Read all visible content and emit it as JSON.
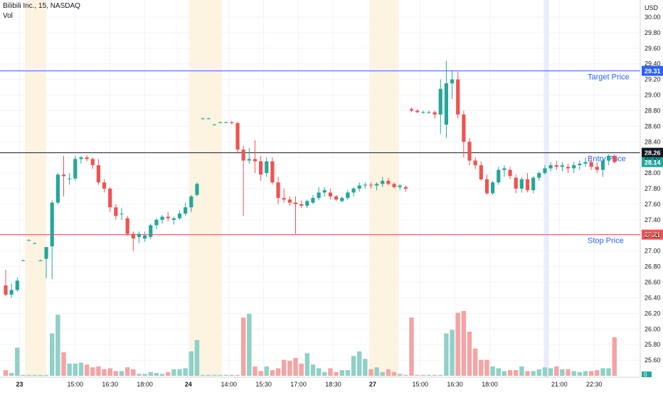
{
  "header": {
    "symbol": "Bilibili Inc., 15, NASDAQ",
    "volume_label": "Vol"
  },
  "colors": {
    "up": "#26a69a",
    "down": "#ef5350",
    "vol_up": "#8fd0c7",
    "vol_down": "#f5a3a3",
    "session_shade": "#fdf3e1",
    "grid": "#f0f3fa",
    "target": "#2962ff",
    "entry": "#131722",
    "stop": "#ef5350"
  },
  "chart_data": {
    "type": "candlestick",
    "currency": "USD",
    "y_axis": {
      "min": 25.4,
      "max": 30.1,
      "ticks": [
        "30.00",
        "29.80",
        "29.60",
        "29.40",
        "29.20",
        "29.00",
        "28.80",
        "28.60",
        "28.40",
        "28.20",
        "28.00",
        "27.80",
        "27.60",
        "27.40",
        "27.20",
        "27.00",
        "26.80",
        "26.60",
        "26.40",
        "26.20",
        "26.00",
        "25.80",
        "25.60"
      ]
    },
    "x_axis": {
      "ticks": [
        {
          "label": "23",
          "bold": true,
          "bar": 2.4
        },
        {
          "label": "15:00",
          "bold": false,
          "bar": 12
        },
        {
          "label": "16:30",
          "bold": false,
          "bar": 18
        },
        {
          "label": "18:00",
          "bold": false,
          "bar": 24
        },
        {
          "label": "24",
          "bold": true,
          "bar": 31.5
        },
        {
          "label": "14:00",
          "bold": false,
          "bar": 38.5
        },
        {
          "label": "15:30",
          "bold": false,
          "bar": 44.5
        },
        {
          "label": "17:00",
          "bold": false,
          "bar": 50.5
        },
        {
          "label": "18:30",
          "bold": false,
          "bar": 56.5
        },
        {
          "label": "27",
          "bold": true,
          "bar": 63.3
        },
        {
          "label": "15:00",
          "bold": false,
          "bar": 71.5
        },
        {
          "label": "16:30",
          "bold": false,
          "bar": 77.5
        },
        {
          "label": "18:00",
          "bold": false,
          "bar": 83.5
        },
        {
          "label": "21:00",
          "bold": false,
          "bar": 95.5
        },
        {
          "label": "22:30",
          "bold": false,
          "bar": 101.5
        }
      ]
    },
    "sessions": [
      [
        3.3,
        7.0
      ],
      [
        31.7,
        37.3
      ],
      [
        62.7,
        67.8
      ]
    ],
    "highlight_column": 93.2,
    "levels": [
      {
        "name": "Target Price",
        "value": 29.31,
        "label_value": "29.31",
        "role": "target"
      },
      {
        "name": "Entry Price",
        "value": 28.26,
        "label_value": "28.26",
        "role": "entry"
      },
      {
        "name": "Stop Price",
        "value": 27.21,
        "label_value": "27.21",
        "role": "stop"
      }
    ],
    "last_price": {
      "value": 28.14,
      "label": "28.14"
    },
    "volume_axis_label": "0",
    "candles": [
      [
        26.56,
        26.76,
        26.42,
        26.44,
        0.06
      ],
      [
        26.44,
        26.58,
        26.4,
        26.5,
        0.03
      ],
      [
        26.5,
        26.66,
        26.48,
        26.62,
        0.3
      ],
      [
        26.88,
        26.89,
        26.87,
        26.88,
        0.01
      ],
      [
        27.14,
        27.15,
        27.13,
        27.14,
        0.01
      ],
      [
        27.1,
        27.11,
        27.09,
        27.1,
        0.01
      ],
      [
        26.88,
        26.89,
        26.87,
        26.88,
        0.01
      ],
      [
        26.9,
        27.05,
        26.65,
        27.05,
        0.01
      ],
      [
        27.06,
        27.65,
        26.64,
        27.62,
        0.45
      ],
      [
        27.62,
        28.0,
        27.6,
        27.98,
        0.65
      ],
      [
        27.98,
        28.22,
        27.7,
        27.96,
        0.25
      ],
      [
        27.92,
        28.0,
        27.85,
        27.93,
        0.13
      ],
      [
        27.93,
        28.22,
        27.9,
        28.18,
        0.13
      ],
      [
        28.18,
        28.22,
        28.12,
        28.2,
        0.14
      ],
      [
        28.2,
        28.23,
        28.15,
        28.18,
        0.12
      ],
      [
        28.18,
        28.2,
        28.05,
        28.1,
        0.09
      ],
      [
        28.1,
        28.18,
        27.85,
        27.88,
        0.1
      ],
      [
        27.88,
        27.92,
        27.75,
        27.8,
        0.07
      ],
      [
        27.8,
        27.82,
        27.5,
        27.56,
        0.08
      ],
      [
        27.56,
        27.6,
        27.4,
        27.45,
        0.05
      ],
      [
        27.48,
        27.55,
        27.4,
        27.48,
        0.05
      ],
      [
        27.42,
        27.45,
        27.2,
        27.22,
        0.09
      ],
      [
        27.22,
        27.25,
        27.0,
        27.16,
        0.07
      ],
      [
        27.18,
        27.25,
        27.1,
        27.22,
        0.02
      ],
      [
        27.16,
        27.25,
        27.12,
        27.2,
        0.02
      ],
      [
        27.18,
        27.35,
        27.15,
        27.33,
        0.04
      ],
      [
        27.33,
        27.42,
        27.28,
        27.4,
        0.03
      ],
      [
        27.4,
        27.46,
        27.35,
        27.44,
        0.02
      ],
      [
        27.44,
        27.5,
        27.38,
        27.42,
        0.04
      ],
      [
        27.4,
        27.44,
        27.34,
        27.42,
        0.07
      ],
      [
        27.42,
        27.52,
        27.4,
        27.48,
        0.07
      ],
      [
        27.48,
        27.62,
        27.45,
        27.56,
        0.08
      ],
      [
        27.56,
        27.72,
        27.5,
        27.7,
        0.26
      ],
      [
        27.72,
        27.88,
        27.7,
        27.86,
        0.38
      ],
      [
        28.7,
        28.71,
        28.69,
        28.7,
        0.01
      ],
      [
        28.7,
        28.71,
        28.69,
        28.7,
        0.01
      ],
      [
        28.62,
        28.63,
        28.61,
        28.62,
        0.01
      ],
      [
        28.65,
        28.66,
        28.64,
        28.65,
        0.01
      ],
      [
        28.65,
        28.66,
        28.64,
        28.65,
        0.01
      ],
      [
        28.65,
        28.67,
        28.62,
        28.64,
        0.01
      ],
      [
        28.64,
        28.66,
        28.25,
        28.3,
        0.01
      ],
      [
        28.3,
        28.35,
        27.45,
        28.16,
        0.62
      ],
      [
        28.16,
        28.32,
        28.12,
        28.18,
        0.66
      ],
      [
        28.18,
        28.42,
        28.0,
        28.15,
        0.1
      ],
      [
        28.15,
        28.22,
        27.9,
        27.98,
        0.05
      ],
      [
        28.0,
        28.2,
        27.95,
        28.15,
        0.1
      ],
      [
        28.15,
        28.2,
        27.85,
        27.88,
        0.06
      ],
      [
        27.88,
        27.95,
        27.6,
        27.68,
        0.08
      ],
      [
        27.68,
        27.8,
        27.62,
        27.66,
        0.17
      ],
      [
        27.66,
        27.7,
        27.58,
        27.62,
        0.16
      ],
      [
        27.62,
        27.7,
        27.22,
        27.6,
        0.19
      ],
      [
        27.6,
        27.65,
        27.55,
        27.58,
        0.13
      ],
      [
        27.58,
        27.66,
        27.55,
        27.64,
        0.24
      ],
      [
        27.62,
        27.72,
        27.6,
        27.68,
        0.12
      ],
      [
        27.68,
        27.82,
        27.65,
        27.75,
        0.08
      ],
      [
        27.75,
        27.82,
        27.7,
        27.78,
        0.04
      ],
      [
        27.75,
        27.8,
        27.66,
        27.7,
        0.08
      ],
      [
        27.7,
        27.72,
        27.64,
        27.66,
        0.04
      ],
      [
        27.64,
        27.7,
        27.62,
        27.68,
        0.06
      ],
      [
        27.68,
        27.78,
        27.66,
        27.75,
        0.06
      ],
      [
        27.75,
        27.82,
        27.7,
        27.8,
        0.21
      ],
      [
        27.8,
        27.88,
        27.76,
        27.84,
        0.26
      ],
      [
        27.84,
        27.88,
        27.8,
        27.85,
        0.18
      ],
      [
        27.85,
        27.88,
        27.8,
        27.84,
        0.07
      ],
      [
        27.84,
        27.88,
        27.78,
        27.86,
        0.09
      ],
      [
        27.86,
        27.95,
        27.82,
        27.9,
        0.04
      ],
      [
        27.9,
        27.94,
        27.84,
        27.86,
        0.07
      ],
      [
        27.86,
        27.88,
        27.8,
        27.82,
        0.04
      ],
      [
        27.82,
        27.86,
        27.78,
        27.84,
        0.02
      ],
      [
        27.82,
        27.84,
        27.76,
        27.8,
        0.01
      ],
      [
        28.82,
        28.84,
        28.78,
        28.8,
        0.62
      ],
      [
        28.8,
        28.82,
        28.77,
        28.78,
        0.01
      ],
      [
        28.78,
        28.8,
        28.76,
        28.78,
        0.01
      ],
      [
        28.78,
        28.8,
        28.76,
        28.78,
        0.01
      ],
      [
        28.78,
        28.8,
        28.7,
        28.75,
        0.01
      ],
      [
        28.75,
        29.2,
        28.5,
        29.08,
        0.01
      ],
      [
        28.62,
        29.44,
        28.45,
        29.15,
        0.45
      ],
      [
        29.15,
        29.32,
        28.95,
        29.2,
        0.49
      ],
      [
        29.2,
        29.3,
        28.7,
        28.75,
        0.67
      ],
      [
        28.75,
        28.8,
        28.2,
        28.4,
        0.69
      ],
      [
        28.4,
        28.45,
        28.1,
        28.16,
        0.47
      ],
      [
        28.16,
        28.2,
        28.05,
        28.1,
        0.29
      ],
      [
        28.1,
        28.15,
        27.9,
        27.92,
        0.17
      ],
      [
        27.92,
        27.98,
        27.72,
        27.74,
        0.17
      ],
      [
        27.74,
        27.9,
        27.72,
        27.88,
        0.1
      ],
      [
        27.88,
        28.08,
        27.85,
        28.04,
        0.08
      ],
      [
        28.04,
        28.1,
        27.95,
        28.06,
        0.05
      ],
      [
        28.04,
        28.08,
        27.92,
        27.96,
        0.06
      ],
      [
        27.94,
        27.98,
        27.74,
        27.8,
        0.06
      ],
      [
        27.8,
        27.95,
        27.75,
        27.92,
        0.1
      ],
      [
        27.92,
        28.0,
        27.75,
        27.78,
        0.05
      ],
      [
        27.78,
        27.96,
        27.74,
        27.94,
        0.05
      ],
      [
        27.94,
        28.02,
        27.9,
        28.0,
        0.07
      ],
      [
        28.0,
        28.1,
        27.98,
        28.06,
        0.09
      ],
      [
        28.06,
        28.14,
        28.02,
        28.1,
        0.08
      ],
      [
        28.1,
        28.16,
        28.04,
        28.08,
        0.1
      ],
      [
        28.08,
        28.14,
        28.02,
        28.1,
        0.07
      ],
      [
        28.08,
        28.12,
        28.0,
        28.06,
        0.07
      ],
      [
        28.06,
        28.14,
        28.0,
        28.1,
        0.05
      ],
      [
        28.1,
        28.16,
        28.04,
        28.12,
        0.04
      ],
      [
        28.12,
        28.2,
        28.08,
        28.14,
        0.05
      ],
      [
        28.14,
        28.22,
        28.04,
        28.08,
        0.05
      ],
      [
        28.08,
        28.14,
        28.0,
        28.04,
        0.06
      ],
      [
        28.04,
        28.18,
        27.95,
        28.16,
        0.08
      ],
      [
        28.16,
        28.24,
        28.1,
        28.22,
        0.08
      ],
      [
        28.22,
        28.24,
        28.12,
        28.14,
        0.41
      ]
    ]
  }
}
